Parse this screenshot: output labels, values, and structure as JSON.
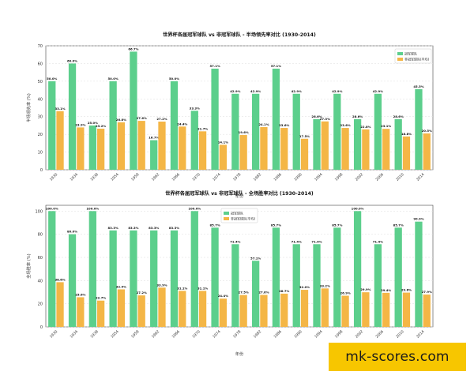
{
  "colors": {
    "champion": "#5ccf8c",
    "non_champion": "#f4b646"
  },
  "watermark": {
    "text": "mk-scores.com"
  },
  "chart_data": [
    {
      "type": "bar",
      "title": "世界杯各届冠军球队 vs 非冠军球队 - 半场领先率对比 (1930-2014)",
      "xlabel": "年份",
      "ylabel": "半场领先率 (%)",
      "ylim": [
        0,
        70
      ],
      "yticks": [
        0,
        10,
        20,
        30,
        40,
        50,
        60,
        70
      ],
      "legend_position": "top-right",
      "categories": [
        "1930",
        "1934",
        "1938",
        "1954",
        "1958",
        "1962",
        "1966",
        "1970",
        "1974",
        "1978",
        "1982",
        "1986",
        "1990",
        "1994",
        "1998",
        "2002",
        "2006",
        "2010",
        "2014"
      ],
      "series": [
        {
          "name": "冠军球队",
          "values": [
            50.0,
            60.0,
            25.0,
            50.0,
            66.7,
            16.7,
            50.0,
            33.3,
            57.1,
            42.9,
            42.9,
            57.1,
            42.9,
            28.6,
            42.9,
            28.6,
            42.9,
            28.6,
            45.5
          ],
          "labels": [
            "50.0%",
            "60.0%",
            "25.0%",
            "50.0%",
            "66.7%",
            "16.7%",
            "50.0%",
            "33.3%",
            "57.1%",
            "42.9%",
            "42.9%",
            "57.1%",
            "42.9%",
            "28.6%",
            "42.9%",
            "28.6%",
            "42.9%",
            "28.6%",
            "45.5%"
          ]
        },
        {
          "name": "非冠军球队(平均)",
          "values": [
            33.1,
            23.9,
            23.2,
            26.8,
            27.6,
            27.2,
            24.4,
            21.7,
            14.1,
            19.6,
            24.1,
            23.6,
            17.5,
            27.3,
            23.6,
            22.8,
            23.1,
            18.8,
            20.5
          ],
          "labels": [
            "33.1%",
            "23.9%",
            "23.2%",
            "26.8%",
            "27.6%",
            "27.2%",
            "24.4%",
            "21.7%",
            "14.1%",
            "19.6%",
            "24.1%",
            "23.6%",
            "17.5%",
            "27.3%",
            "23.6%",
            "22.8%",
            "23.1%",
            "18.8%",
            "20.5%"
          ]
        }
      ]
    },
    {
      "type": "bar",
      "title": "世界杯各届冠军球队 vs 非冠军球队 - 全场胜率对比 (1930-2014)",
      "xlabel": "年份",
      "ylabel": "全场胜率 (%)",
      "ylim": [
        0,
        105
      ],
      "yticks": [
        0,
        20,
        40,
        60,
        80,
        100
      ],
      "legend_position": "top-center",
      "categories": [
        "1930",
        "1934",
        "1938",
        "1954",
        "1958",
        "1962",
        "1966",
        "1970",
        "1974",
        "1978",
        "1982",
        "1986",
        "1990",
        "1994",
        "1998",
        "2002",
        "2006",
        "2010",
        "2014"
      ],
      "series": [
        {
          "name": "冠军球队",
          "values": [
            100.0,
            80.0,
            100.0,
            83.3,
            83.3,
            83.3,
            83.3,
            100.0,
            85.7,
            71.4,
            57.1,
            85.7,
            71.4,
            71.4,
            85.7,
            100.0,
            71.4,
            85.7,
            90.9
          ],
          "labels": [
            "100.0%",
            "80.0%",
            "100.0%",
            "83.3%",
            "83.3%",
            "83.3%",
            "83.3%",
            "100.0%",
            "85.7%",
            "71.4%",
            "57.1%",
            "85.7%",
            "71.4%",
            "71.4%",
            "85.7%",
            "100.0%",
            "71.4%",
            "85.7%",
            "90.9%"
          ]
        },
        {
          "name": "非冠军球队(平均)",
          "values": [
            38.6,
            25.6,
            22.7,
            32.4,
            27.2,
            33.9,
            31.1,
            31.1,
            24.4,
            27.5,
            27.6,
            28.7,
            32.0,
            33.2,
            26.9,
            29.9,
            29.4,
            29.6,
            27.9
          ],
          "labels": [
            "38.6%",
            "25.6%",
            "22.7%",
            "32.4%",
            "27.2%",
            "33.9%",
            "31.1%",
            "31.1%",
            "24.4%",
            "27.5%",
            "27.6%",
            "28.7%",
            "32.0%",
            "33.2%",
            "26.9%",
            "29.9%",
            "29.4%",
            "29.6%",
            "27.9%"
          ]
        }
      ]
    }
  ]
}
